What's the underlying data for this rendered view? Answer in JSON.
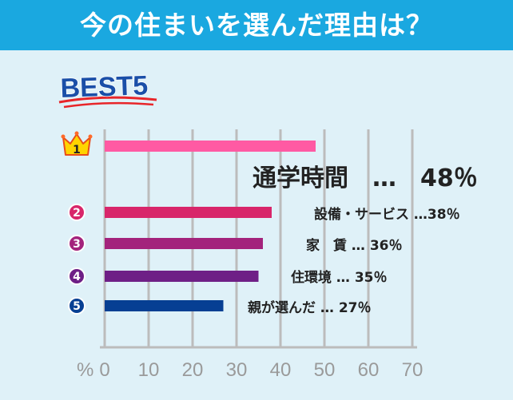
{
  "header": {
    "title": "今の住まいを選んだ理由は？"
  },
  "colors": {
    "header_bg": "#1aa8e0",
    "chart_bg": "#dff1f8",
    "grid": "#bcbcbc"
  },
  "chart_data": {
    "type": "bar",
    "orientation": "horizontal",
    "title": "今の住まいを選んだ理由は？",
    "subtitle": "BEST5",
    "unit_label": "%",
    "xlim": [
      0,
      70
    ],
    "x_ticks": [
      "0",
      "10",
      "20",
      "30",
      "40",
      "50",
      "60",
      "70"
    ],
    "grid": true,
    "categories": [
      "通学時間",
      "設備・サービス",
      "家　賃",
      "住環境",
      "親が選んだ"
    ],
    "values": [
      48,
      38,
      36,
      35,
      27
    ],
    "ranks": [
      "1",
      "2",
      "3",
      "4",
      "5"
    ],
    "labels": [
      "通学時間　…　48％",
      "設備・サービス …38％",
      "家　賃 …  36％",
      "住環境 …  35％",
      "親が選んだ …  27％"
    ],
    "colors": [
      "#ff5aa3",
      "#d8266a",
      "#a3237c",
      "#6e1f86",
      "#063f93"
    ],
    "rank_badge_colors": [
      "#ffd400",
      "#d8266a",
      "#a3237c",
      "#6e1f86",
      "#063f93"
    ]
  }
}
